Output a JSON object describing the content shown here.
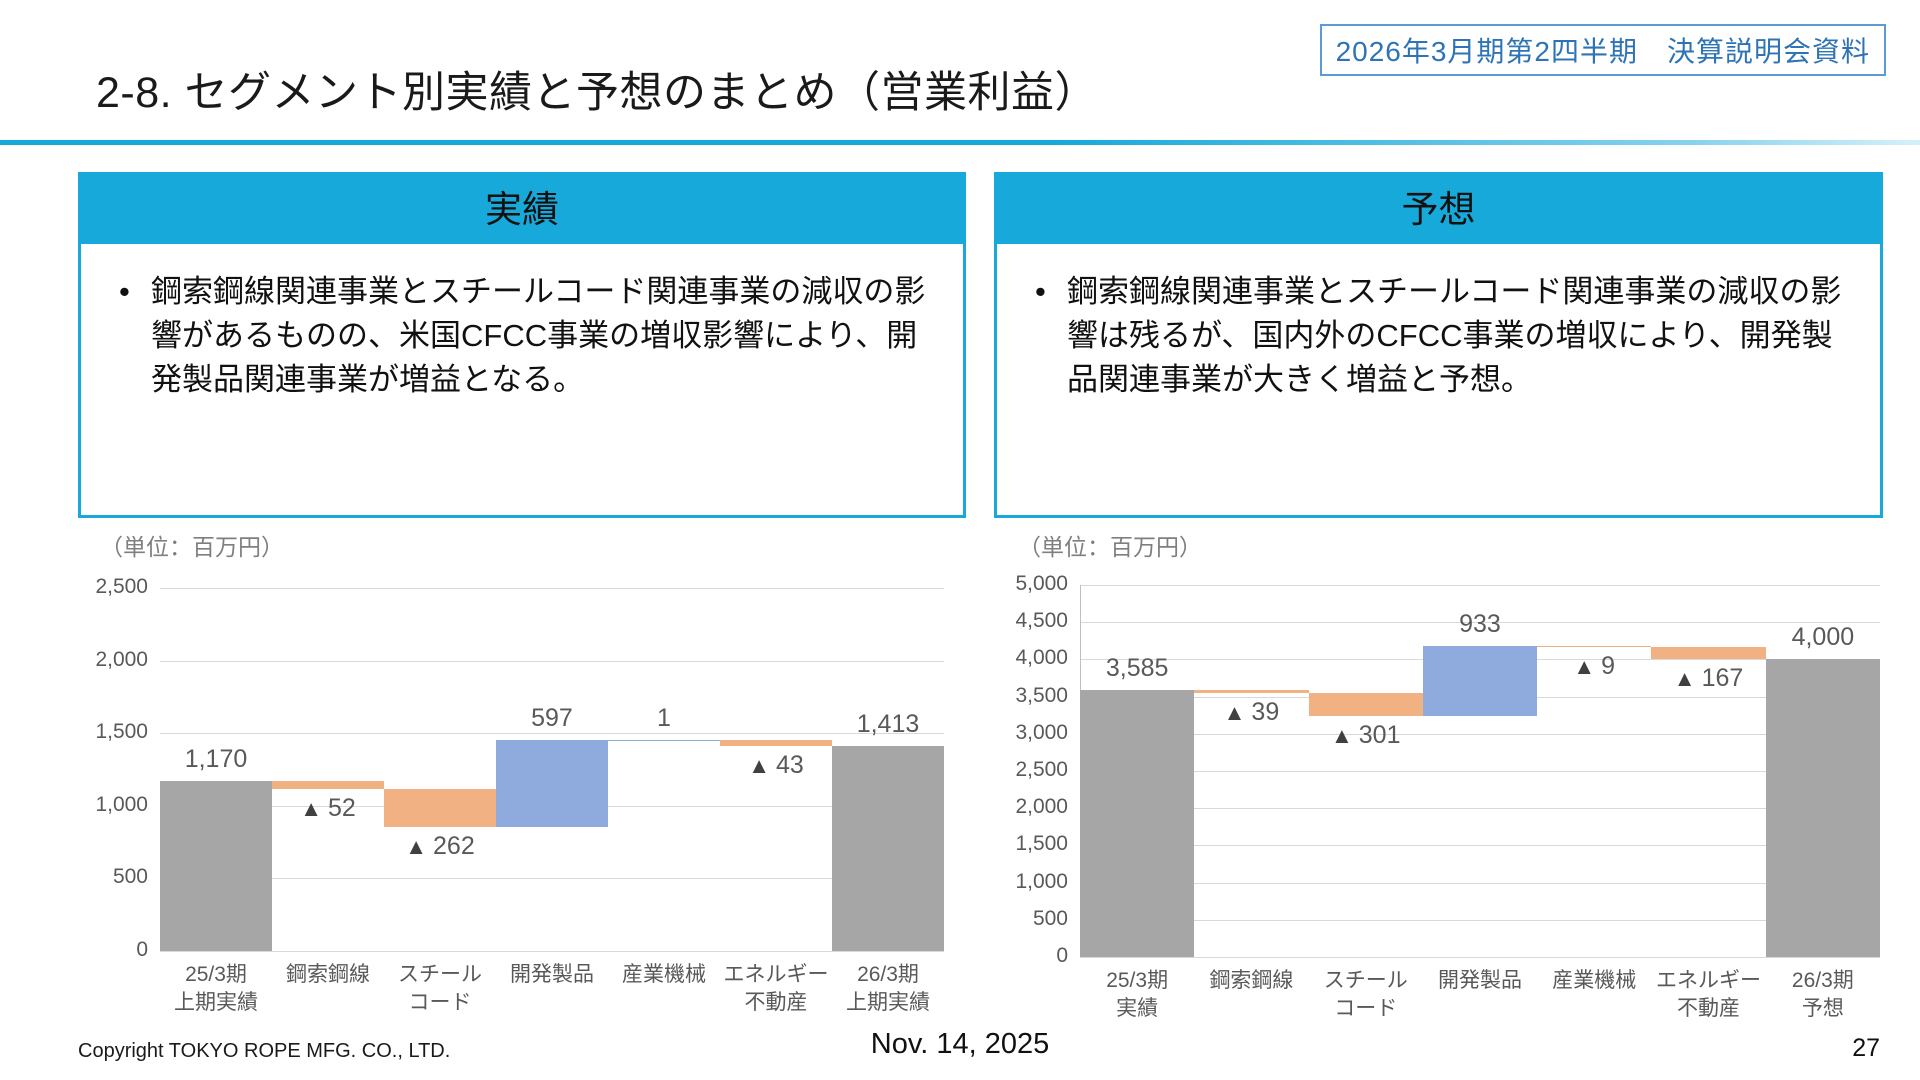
{
  "slide": {
    "badge": "2026年3月期第2四半期　決算説明会資料",
    "title": "2-8. セグメント別実績と予想のまとめ（営業利益）",
    "accent_cyan": "#18A9DB",
    "badge_blue": "#2E74B5",
    "footer": {
      "copyright": "Copyright TOKYO ROPE MFG. CO., LTD.",
      "date": "Nov. 14, 2025",
      "page_number": "27"
    }
  },
  "panels": [
    {
      "header": "実績",
      "bullet": "鋼索鋼線関連事業とスチールコード関連事業の減収の影響があるものの、米国CFCC事業の増収影響により、開発製品関連事業が増益となる。"
    },
    {
      "header": "予想",
      "bullet": "鋼索鋼線関連事業とスチールコード関連事業の減収の影響は残るが、国内外のCFCC事業の増収により、開発製品関連事業が大きく増益と予想。"
    }
  ],
  "chart_data": [
    {
      "type": "waterfall",
      "unit_label": "（単位：百万円）",
      "ylim": [
        0,
        2500
      ],
      "ytick_step": 500,
      "grid": true,
      "y_axis_line": false,
      "legend": "none",
      "yticks": [
        {
          "value": 0,
          "label": "0"
        },
        {
          "value": 500,
          "label": "500"
        },
        {
          "value": 1000,
          "label": "1,000"
        },
        {
          "value": 1500,
          "label": "1,500"
        },
        {
          "value": 2000,
          "label": "2,000"
        },
        {
          "value": 2500,
          "label": "2,500"
        }
      ],
      "categories": [
        {
          "name": "25/3期上期実績",
          "lines": [
            "25/3期",
            "上期実績"
          ]
        },
        {
          "name": "鋼索鋼線",
          "lines": [
            "鋼索鋼線"
          ]
        },
        {
          "name": "スチールコード",
          "lines": [
            "スチール",
            "コード"
          ]
        },
        {
          "name": "開発製品",
          "lines": [
            "開発製品"
          ]
        },
        {
          "name": "産業機械",
          "lines": [
            "産業機械"
          ]
        },
        {
          "name": "エネルギー不動産",
          "lines": [
            "エネルギー",
            "不動産"
          ]
        },
        {
          "name": "26/3期上期実績",
          "lines": [
            "26/3期",
            "上期実績"
          ]
        }
      ],
      "bars": [
        {
          "kind": "total",
          "value": 1170,
          "label": "1,170",
          "label_pos": "above"
        },
        {
          "kind": "delta",
          "value": -52,
          "label": "▲ 52",
          "label_pos": "below"
        },
        {
          "kind": "delta",
          "value": -262,
          "label": "▲ 262",
          "label_pos": "below"
        },
        {
          "kind": "delta",
          "value": 597,
          "label": "597",
          "label_pos": "above"
        },
        {
          "kind": "delta",
          "value": 1,
          "label": "1",
          "label_pos": "above"
        },
        {
          "kind": "delta",
          "value": -43,
          "label": "▲ 43",
          "label_pos": "below"
        },
        {
          "kind": "total",
          "value": 1413,
          "label": "1,413",
          "label_pos": "above"
        }
      ],
      "colors": {
        "total": "#A6A6A6",
        "increase": "#8FAADC",
        "decrease": "#F2B183",
        "label": "#595959",
        "triangle": "#404040",
        "gridline": "#D9D9D9"
      }
    },
    {
      "type": "waterfall",
      "unit_label": "（単位：百万円）",
      "ylim": [
        0,
        5000
      ],
      "ytick_step": 500,
      "grid": true,
      "y_axis_line": true,
      "legend": "none",
      "yticks": [
        {
          "value": 0,
          "label": "0"
        },
        {
          "value": 500,
          "label": "500"
        },
        {
          "value": 1000,
          "label": "1,000"
        },
        {
          "value": 1500,
          "label": "1,500"
        },
        {
          "value": 2000,
          "label": "2,000"
        },
        {
          "value": 2500,
          "label": "2,500"
        },
        {
          "value": 3000,
          "label": "3,000"
        },
        {
          "value": 3500,
          "label": "3,500"
        },
        {
          "value": 4000,
          "label": "4,000"
        },
        {
          "value": 4500,
          "label": "4,500"
        },
        {
          "value": 5000,
          "label": "5,000"
        }
      ],
      "categories": [
        {
          "name": "25/3期実績",
          "lines": [
            "25/3期",
            "実績"
          ]
        },
        {
          "name": "鋼索鋼線",
          "lines": [
            "鋼索鋼線"
          ]
        },
        {
          "name": "スチールコード",
          "lines": [
            "スチール",
            "コード"
          ]
        },
        {
          "name": "開発製品",
          "lines": [
            "開発製品"
          ]
        },
        {
          "name": "産業機械",
          "lines": [
            "産業機械"
          ]
        },
        {
          "name": "エネルギー不動産",
          "lines": [
            "エネルギー",
            "不動産"
          ]
        },
        {
          "name": "26/3期予想",
          "lines": [
            "26/3期",
            "予想"
          ]
        }
      ],
      "bars": [
        {
          "kind": "total",
          "value": 3585,
          "label": "3,585",
          "label_pos": "above"
        },
        {
          "kind": "delta",
          "value": -39,
          "label": "▲ 39",
          "label_pos": "below"
        },
        {
          "kind": "delta",
          "value": -301,
          "label": "▲ 301",
          "label_pos": "below"
        },
        {
          "kind": "delta",
          "value": 933,
          "label": "933",
          "label_pos": "above"
        },
        {
          "kind": "delta",
          "value": -9,
          "label": "▲ 9",
          "label_pos": "below"
        },
        {
          "kind": "delta",
          "value": -167,
          "label": "▲ 167",
          "label_pos": "below"
        },
        {
          "kind": "total",
          "value": 4000,
          "label": "4,000",
          "label_pos": "above"
        }
      ],
      "colors": {
        "total": "#A6A6A6",
        "increase": "#8FAADC",
        "decrease": "#F2B183",
        "label": "#595959",
        "triangle": "#404040",
        "gridline": "#D9D9D9"
      }
    }
  ]
}
